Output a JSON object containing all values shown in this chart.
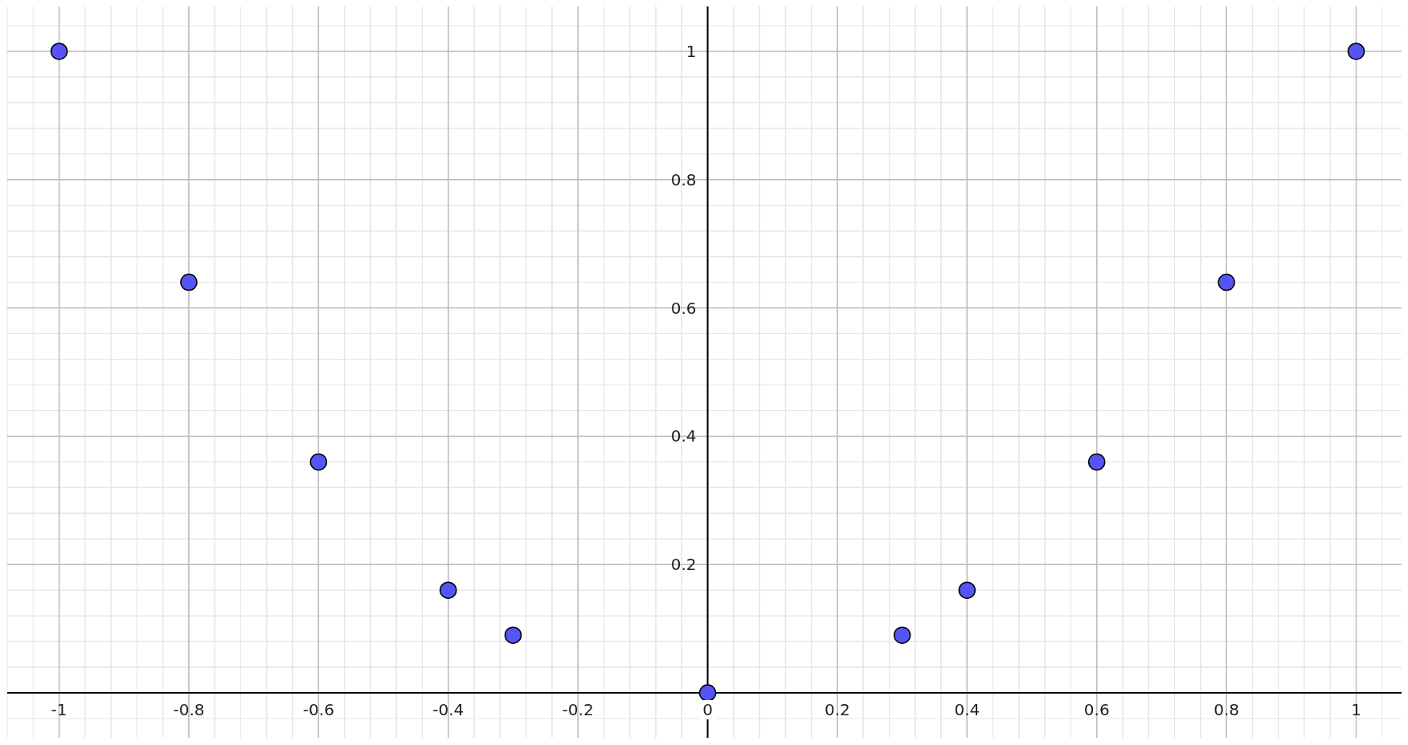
{
  "chart_data": {
    "type": "scatter",
    "x": [
      -1,
      -0.8,
      -0.6,
      -0.4,
      -0.3,
      0,
      0.3,
      0.4,
      0.6,
      0.8,
      1
    ],
    "series": [
      {
        "color": "#5555f5",
        "values": [
          1,
          0.64,
          0.36,
          0.16,
          0.09,
          0,
          0.09,
          0.16,
          0.36,
          0.64,
          1
        ]
      }
    ],
    "xlim": [
      -1.08,
      1.07
    ],
    "ylim": [
      -0.07,
      1.07
    ],
    "xticks": [
      -1,
      -0.8,
      -0.6,
      -0.4,
      -0.2,
      0,
      0.2,
      0.4,
      0.6,
      0.8,
      1
    ],
    "yticks": [
      {
        "value": 0,
        "label": null
      },
      0.2,
      0.4,
      0.6,
      0.8,
      1
    ],
    "grid": true,
    "marker": "circle"
  }
}
